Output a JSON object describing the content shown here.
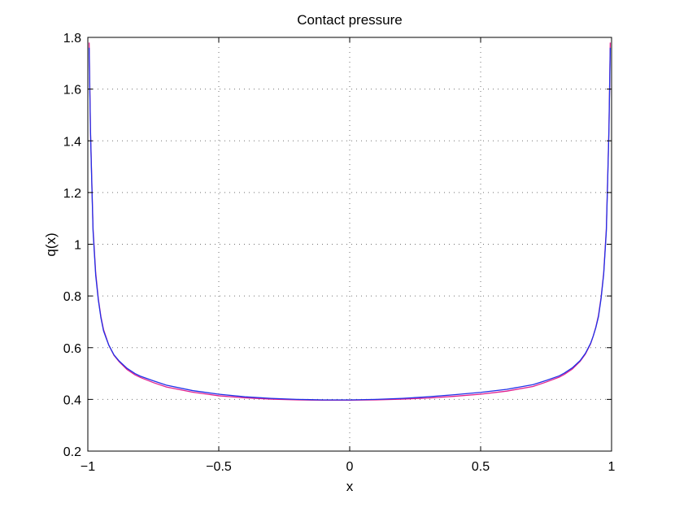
{
  "chart_data": {
    "type": "line",
    "title": "Contact pressure",
    "xlabel": "x",
    "ylabel": "q(x)",
    "xlim": [
      -1,
      1
    ],
    "ylim": [
      0.2,
      1.8
    ],
    "grid": true,
    "xticks": [
      -1,
      -0.5,
      0,
      0.5,
      1
    ],
    "xtick_labels": [
      "−1",
      "−0.5",
      "0",
      "0.5",
      "1"
    ],
    "yticks": [
      0.2,
      0.4,
      0.6,
      0.8,
      1,
      1.2,
      1.4,
      1.6,
      1.8
    ],
    "ytick_labels": [
      "0.2",
      "0.4",
      "0.6",
      "0.8",
      "1",
      "1.2",
      "1.4",
      "1.6",
      "1.8"
    ],
    "series": [
      {
        "color": "#e0208e",
        "x": [
          -0.995,
          -0.99,
          -0.985,
          -0.98,
          -0.97,
          -0.96,
          -0.95,
          -0.94,
          -0.93,
          -0.92,
          -0.9,
          -0.88,
          -0.85,
          -0.82,
          -0.8,
          -0.75,
          -0.7,
          -0.6,
          -0.5,
          -0.4,
          -0.3,
          -0.2,
          -0.1,
          0,
          0.1,
          0.2,
          0.3,
          0.4,
          0.5,
          0.6,
          0.7,
          0.75,
          0.8,
          0.82,
          0.85,
          0.88,
          0.9,
          0.92,
          0.93,
          0.94,
          0.95,
          0.96,
          0.97,
          0.98,
          0.985,
          0.99,
          0.995
        ],
        "y": [
          1.78,
          1.45,
          1.25,
          1.06,
          0.89,
          0.79,
          0.72,
          0.67,
          0.64,
          0.61,
          0.57,
          0.545,
          0.515,
          0.495,
          0.485,
          0.465,
          0.448,
          0.428,
          0.414,
          0.406,
          0.401,
          0.398,
          0.397,
          0.397,
          0.398,
          0.401,
          0.405,
          0.412,
          0.42,
          0.432,
          0.45,
          0.467,
          0.486,
          0.497,
          0.517,
          0.547,
          0.575,
          0.615,
          0.645,
          0.68,
          0.725,
          0.795,
          0.89,
          1.06,
          1.25,
          1.45,
          1.78
        ]
      },
      {
        "color": "#2030e8",
        "x": [
          -0.995,
          -0.99,
          -0.985,
          -0.98,
          -0.97,
          -0.96,
          -0.95,
          -0.94,
          -0.93,
          -0.92,
          -0.9,
          -0.88,
          -0.85,
          -0.82,
          -0.8,
          -0.75,
          -0.7,
          -0.6,
          -0.5,
          -0.4,
          -0.3,
          -0.2,
          -0.1,
          0,
          0.1,
          0.2,
          0.3,
          0.4,
          0.5,
          0.6,
          0.7,
          0.75,
          0.8,
          0.82,
          0.85,
          0.88,
          0.9,
          0.92,
          0.93,
          0.94,
          0.95,
          0.96,
          0.97,
          0.98,
          0.985,
          0.99,
          0.995
        ],
        "y": [
          1.76,
          1.44,
          1.24,
          1.05,
          0.88,
          0.785,
          0.715,
          0.665,
          0.637,
          0.61,
          0.572,
          0.548,
          0.52,
          0.5,
          0.49,
          0.472,
          0.455,
          0.434,
          0.42,
          0.41,
          0.404,
          0.4,
          0.398,
          0.398,
          0.4,
          0.404,
          0.41,
          0.418,
          0.427,
          0.439,
          0.457,
          0.473,
          0.491,
          0.502,
          0.522,
          0.55,
          0.578,
          0.617,
          0.645,
          0.678,
          0.72,
          0.79,
          0.885,
          1.05,
          1.24,
          1.44,
          1.76
        ]
      }
    ]
  }
}
